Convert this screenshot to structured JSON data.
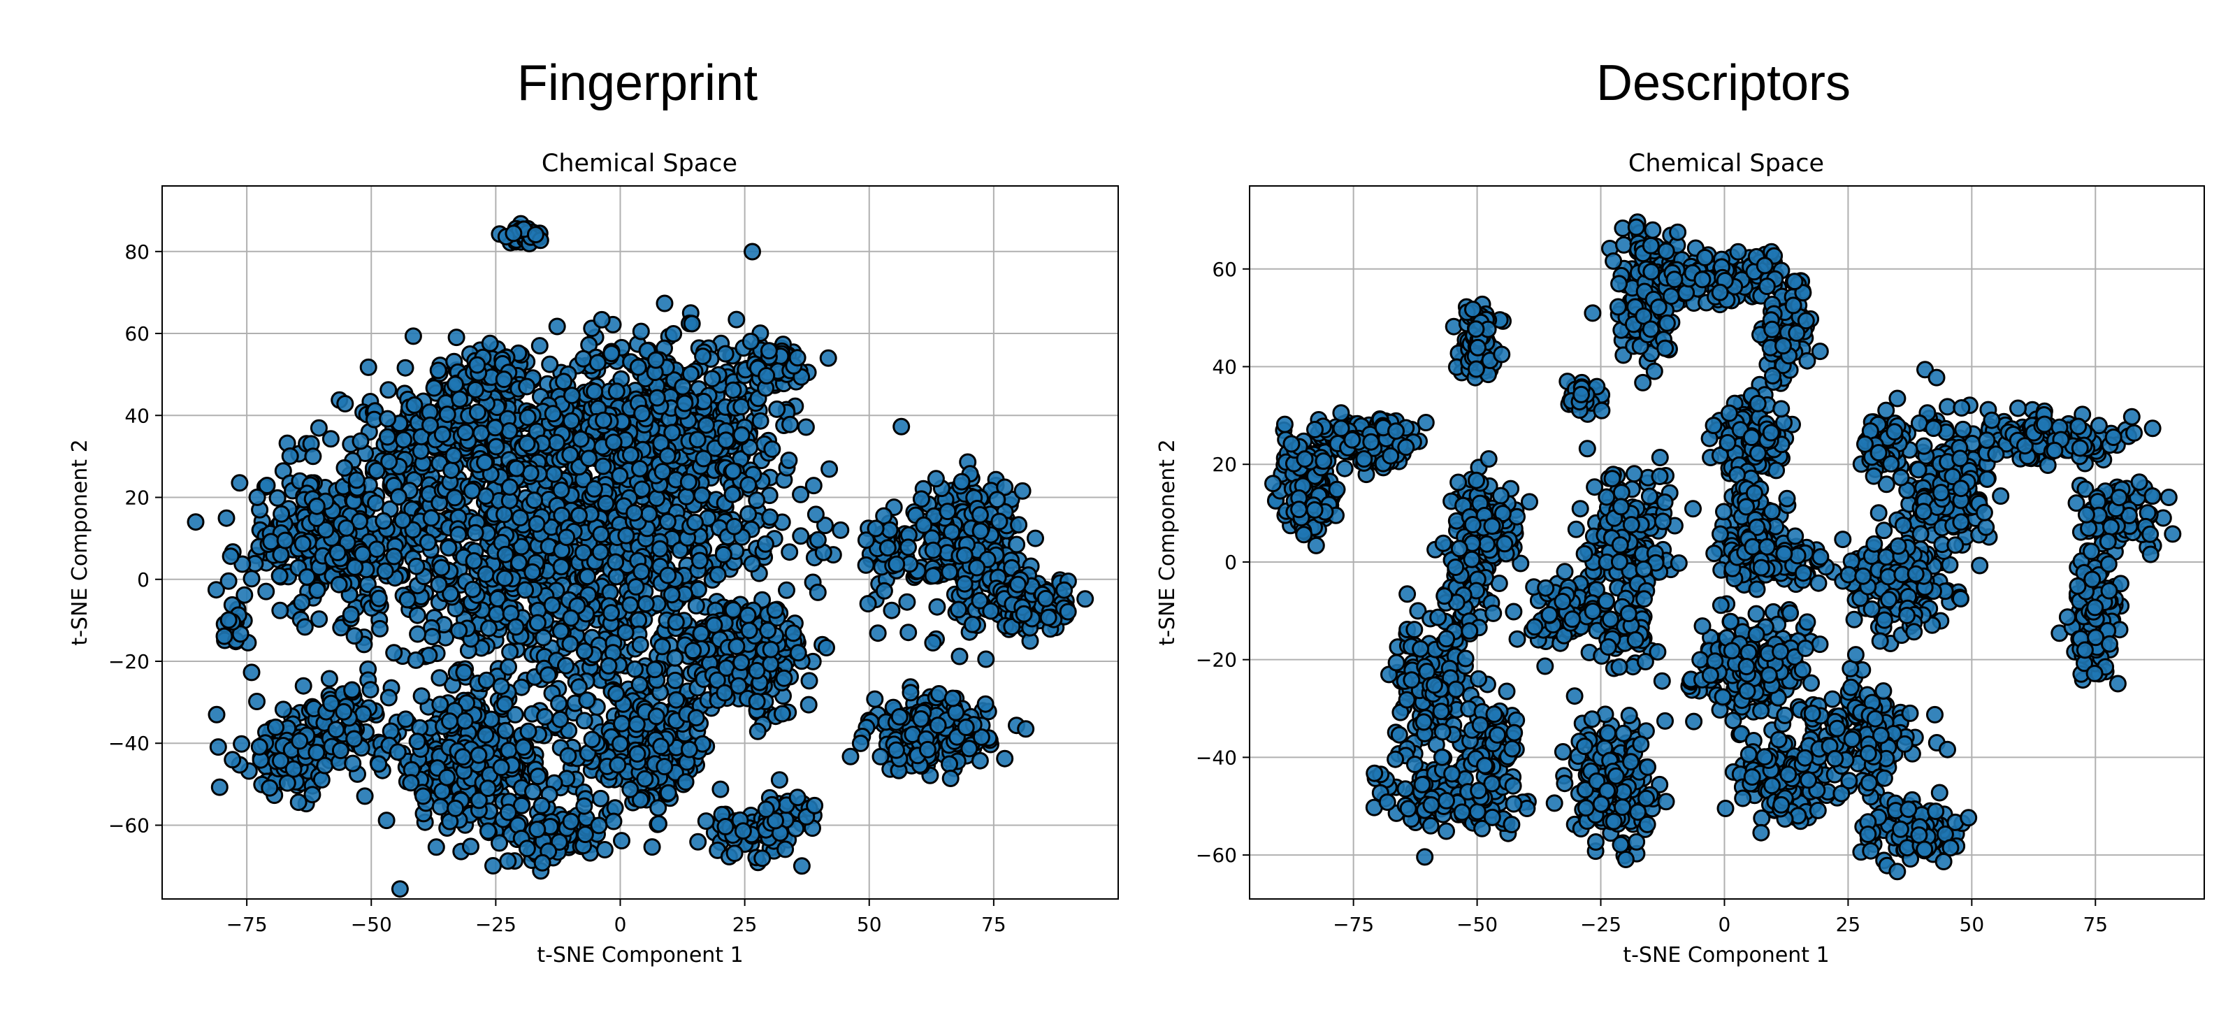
{
  "panels": [
    {
      "title": "Fingerprint"
    },
    {
      "title": "Descriptors"
    }
  ],
  "colors": {
    "marker_fill": "#1f77b4",
    "marker_edge": "#000000",
    "grid": "#b0b0b0"
  },
  "chart_data": [
    {
      "type": "scatter",
      "title": "Chemical Space",
      "xlabel": "t-SNE Component 1",
      "ylabel": "t-SNE Component 2",
      "xlim": [
        -92,
        100
      ],
      "ylim": [
        -78,
        96
      ],
      "xticks": [
        -75,
        -50,
        -25,
        0,
        25,
        50,
        75
      ],
      "yticks": [
        -60,
        -40,
        -20,
        0,
        20,
        40,
        60,
        80
      ],
      "xticklabels": [
        "−75",
        "−50",
        "−25",
        "0",
        "25",
        "50",
        "75"
      ],
      "yticklabels": [
        "−60",
        "−40",
        "−20",
        "0",
        "20",
        "40",
        "60",
        "80"
      ],
      "grid": true,
      "clusters": [
        {
          "cx": -10,
          "cy": 10,
          "sx": 26,
          "sy": 24,
          "n": 1400
        },
        {
          "cx": 8,
          "cy": 38,
          "sx": 12,
          "sy": 12,
          "n": 450
        },
        {
          "cx": -30,
          "cy": 36,
          "sx": 12,
          "sy": 10,
          "n": 220
        },
        {
          "cx": 30,
          "cy": 52,
          "sx": 5,
          "sy": 4,
          "n": 60
        },
        {
          "cx": -24,
          "cy": 52,
          "sx": 4,
          "sy": 3,
          "n": 40
        },
        {
          "cx": -58,
          "cy": 10,
          "sx": 10,
          "sy": 10,
          "n": 260
        },
        {
          "cx": -65,
          "cy": -42,
          "sx": 6,
          "sy": 6,
          "n": 130
        },
        {
          "cx": -55,
          "cy": -35,
          "sx": 5,
          "sy": 6,
          "n": 60
        },
        {
          "cx": -30,
          "cy": -45,
          "sx": 10,
          "sy": 9,
          "n": 320
        },
        {
          "cx": 5,
          "cy": -42,
          "sx": 8,
          "sy": 8,
          "n": 220
        },
        {
          "cx": -13,
          "cy": -62,
          "sx": 6,
          "sy": 4,
          "n": 90
        },
        {
          "cx": 25,
          "cy": -62,
          "sx": 4,
          "sy": 3,
          "n": 60
        },
        {
          "cx": 33,
          "cy": -58,
          "sx": 4,
          "sy": 4,
          "n": 40
        },
        {
          "cx": 70,
          "cy": 8,
          "sx": 6,
          "sy": 10,
          "n": 280
        },
        {
          "cx": 83,
          "cy": -6,
          "sx": 4,
          "sy": 4,
          "n": 120
        },
        {
          "cx": 62,
          "cy": -38,
          "sx": 7,
          "sy": 5,
          "n": 200
        },
        {
          "cx": 53,
          "cy": 7,
          "sx": 3,
          "sy": 6,
          "n": 40
        },
        {
          "cx": -19,
          "cy": 84,
          "sx": 2,
          "sy": 1.2,
          "n": 40
        },
        {
          "cx": 25,
          "cy": -20,
          "sx": 8,
          "sy": 8,
          "n": 200
        },
        {
          "cx": -78,
          "cy": -10,
          "sx": 2,
          "sy": 6,
          "n": 20
        }
      ]
    },
    {
      "type": "scatter",
      "title": "Chemical Space",
      "xlabel": "t-SNE Component 1",
      "ylabel": "t-SNE Component 2",
      "xlim": [
        -96,
        97
      ],
      "ylim": [
        -69,
        77
      ],
      "xticks": [
        -75,
        -50,
        -25,
        0,
        25,
        50,
        75
      ],
      "yticks": [
        -60,
        -40,
        -20,
        0,
        20,
        40,
        60
      ],
      "xticklabels": [
        "−75",
        "−50",
        "−25",
        "0",
        "25",
        "50",
        "75"
      ],
      "yticklabels": [
        "−60",
        "−40",
        "−20",
        "0",
        "20",
        "40",
        "60"
      ],
      "grid": true,
      "clusters": [
        {
          "cx": -84,
          "cy": 15,
          "sx": 3,
          "sy": 5,
          "n": 180
        },
        {
          "cx": -73,
          "cy": 25,
          "sx": 6,
          "sy": 3,
          "n": 150
        },
        {
          "cx": -50,
          "cy": 45,
          "sx": 2,
          "sy": 5,
          "n": 90
        },
        {
          "cx": -48,
          "cy": 8,
          "sx": 4,
          "sy": 6,
          "n": 120
        },
        {
          "cx": -52,
          "cy": -5,
          "sx": 3,
          "sy": 6,
          "n": 60
        },
        {
          "cx": -58,
          "cy": -25,
          "sx": 5,
          "sy": 8,
          "n": 180
        },
        {
          "cx": -55,
          "cy": -48,
          "sx": 8,
          "sy": 4,
          "n": 140
        },
        {
          "cx": -47,
          "cy": -38,
          "sx": 3,
          "sy": 6,
          "n": 60
        },
        {
          "cx": -28,
          "cy": 34,
          "sx": 2,
          "sy": 2,
          "n": 40
        },
        {
          "cx": -20,
          "cy": 5,
          "sx": 5,
          "sy": 7,
          "n": 160
        },
        {
          "cx": -32,
          "cy": -10,
          "sx": 5,
          "sy": 4,
          "n": 100
        },
        {
          "cx": -20,
          "cy": -15,
          "sx": 4,
          "sy": 4,
          "n": 60
        },
        {
          "cx": -22,
          "cy": -45,
          "sx": 5,
          "sy": 8,
          "n": 160
        },
        {
          "cx": -15,
          "cy": 55,
          "sx": 4,
          "sy": 8,
          "n": 160
        },
        {
          "cx": 0,
          "cy": 58,
          "sx": 7,
          "sy": 3,
          "n": 120
        },
        {
          "cx": 12,
          "cy": 48,
          "sx": 3,
          "sy": 6,
          "n": 80
        },
        {
          "cx": 5,
          "cy": 25,
          "sx": 4,
          "sy": 5,
          "n": 120
        },
        {
          "cx": 5,
          "cy": 5,
          "sx": 4,
          "sy": 6,
          "n": 120
        },
        {
          "cx": 12,
          "cy": 0,
          "sx": 6,
          "sy": 3,
          "n": 60
        },
        {
          "cx": 5,
          "cy": -22,
          "sx": 7,
          "sy": 6,
          "n": 200
        },
        {
          "cx": 12,
          "cy": -45,
          "sx": 5,
          "sy": 5,
          "n": 140
        },
        {
          "cx": 28,
          "cy": -35,
          "sx": 7,
          "sy": 6,
          "n": 160
        },
        {
          "cx": 38,
          "cy": -55,
          "sx": 5,
          "sy": 4,
          "n": 120
        },
        {
          "cx": 35,
          "cy": -5,
          "sx": 6,
          "sy": 6,
          "n": 160
        },
        {
          "cx": 45,
          "cy": 15,
          "sx": 6,
          "sy": 8,
          "n": 180
        },
        {
          "cx": 65,
          "cy": 25,
          "sx": 8,
          "sy": 3,
          "n": 140
        },
        {
          "cx": 80,
          "cy": 10,
          "sx": 5,
          "sy": 4,
          "n": 100
        },
        {
          "cx": 75,
          "cy": -12,
          "sx": 3,
          "sy": 8,
          "n": 120
        },
        {
          "cx": 32,
          "cy": 25,
          "sx": 3,
          "sy": 3,
          "n": 60
        }
      ]
    }
  ]
}
